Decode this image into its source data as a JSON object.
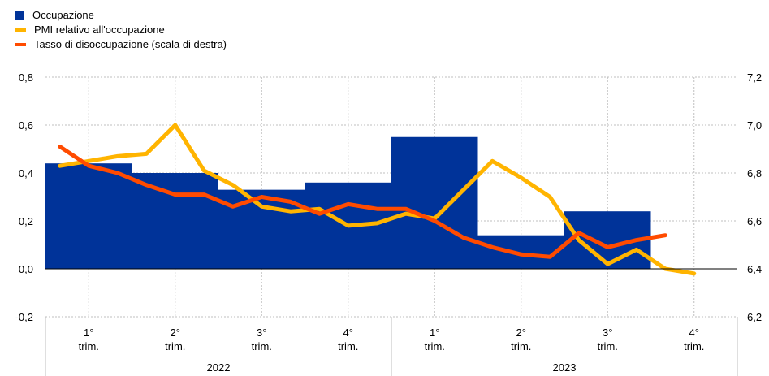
{
  "chart_data": {
    "type": "bar+line",
    "legend": [
      {
        "label": "Occupazione",
        "kind": "bar",
        "color": "#003399"
      },
      {
        "label": "PMI relativo all'occupazione",
        "kind": "line",
        "color": "#FFB400"
      },
      {
        "label": "Tasso di disoccupazione (scala di destra)",
        "kind": "line",
        "color": "#FF4B00"
      }
    ],
    "left_axis": {
      "min": -0.2,
      "max": 0.8,
      "ticks": [
        "-0,2",
        "0,0",
        "0,2",
        "0,4",
        "0,6",
        "0,8"
      ]
    },
    "right_axis": {
      "min": 6.2,
      "max": 7.2,
      "ticks": [
        "6,2",
        "6,4",
        "6,6",
        "6,8",
        "7,0",
        "7,2"
      ]
    },
    "quarters": [
      {
        "q": "1°",
        "sub": "trim."
      },
      {
        "q": "2°",
        "sub": "trim."
      },
      {
        "q": "3°",
        "sub": "trim."
      },
      {
        "q": "4°",
        "sub": "trim."
      },
      {
        "q": "1°",
        "sub": "trim."
      },
      {
        "q": "2°",
        "sub": "trim."
      },
      {
        "q": "3°",
        "sub": "trim."
      },
      {
        "q": "4°",
        "sub": "trim."
      }
    ],
    "years": [
      "2022",
      "2023"
    ],
    "occupazione": [
      0.44,
      0.4,
      0.33,
      0.36,
      0.55,
      0.14,
      0.24,
      null
    ],
    "pmi": [
      0.43,
      0.45,
      0.47,
      0.48,
      0.6,
      0.41,
      0.35,
      0.26,
      0.24,
      0.25,
      0.18,
      0.19,
      0.23,
      0.21,
      0.33,
      0.45,
      0.38,
      0.3,
      0.12,
      0.02,
      0.08,
      0.0,
      -0.02
    ],
    "disoccupazione": [
      6.91,
      6.83,
      6.8,
      6.75,
      6.71,
      6.71,
      6.66,
      6.7,
      6.68,
      6.63,
      6.67,
      6.65,
      6.65,
      6.6,
      6.53,
      6.49,
      6.46,
      6.45,
      6.55,
      6.49,
      6.52,
      6.54
    ]
  }
}
